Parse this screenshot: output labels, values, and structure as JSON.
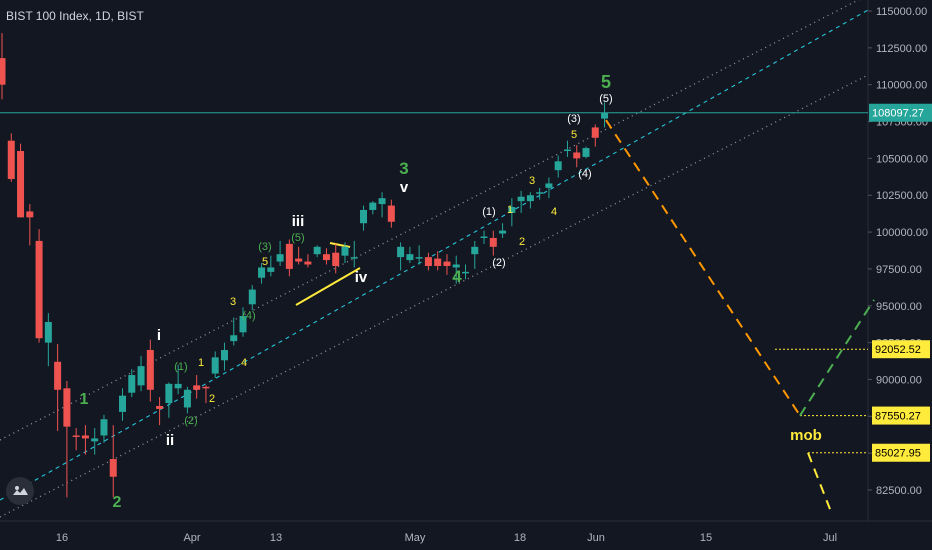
{
  "title": "BIST 100 Index, 1D, BIST",
  "colors": {
    "up": "#26a69a",
    "down": "#ef5350",
    "green": "#4caf50",
    "yellow": "#ffeb3b",
    "white": "#ffffff",
    "orange": "#ff9800",
    "channel_dotted": "#9598a1",
    "channel_center": "#26c6da",
    "tag": "#ffeb3b"
  },
  "price_axis": {
    "ticks": [
      "115000.00",
      "112500.00",
      "110000.00",
      "107500.00",
      "105000.00",
      "102500.00",
      "100000.00",
      "97500.00",
      "95000.00",
      "92500.00",
      "90000.00",
      "87500.00",
      "85000.00",
      "82500.00"
    ]
  },
  "date_axis": {
    "labels": [
      "16",
      "Apr",
      "13",
      "May",
      "18",
      "Jun",
      "15",
      "Jul"
    ]
  },
  "current_price": "108097.27",
  "price_tags": [
    "92052.52",
    "87550.27",
    "85027.95"
  ],
  "wave_labels": [
    "1",
    "2",
    "i",
    "ii",
    "(1)",
    "1",
    "(2)",
    "2",
    "3",
    "4",
    "(3)",
    "5",
    "(4)",
    "(5)",
    "iii",
    "iv",
    "3",
    "v",
    "4",
    "(1)",
    "1",
    "(2)",
    "2",
    "3",
    "4",
    "(3)",
    "5",
    "(4)",
    "(5)",
    "5"
  ],
  "annotation": "mob",
  "chart_data": {
    "type": "candlestick",
    "title": "BIST 100 Index, 1D, BIST",
    "ylim": [
      80000,
      116000
    ],
    "y_ticks": [
      115000,
      112500,
      110000,
      107500,
      105000,
      102500,
      100000,
      97500,
      95000,
      92500,
      90000,
      87500,
      85000,
      82500
    ],
    "x_tick_labels": [
      "16",
      "Apr",
      "13",
      "May",
      "18",
      "Jun",
      "15",
      "Jul"
    ],
    "candles": [
      {
        "o": 111800,
        "h": 113500,
        "l": 109000,
        "c": 110000
      },
      {
        "o": 106200,
        "h": 106700,
        "l": 103400,
        "c": 103600
      },
      {
        "o": 105500,
        "h": 106000,
        "l": 101000,
        "c": 101000
      },
      {
        "o": 101400,
        "h": 101900,
        "l": 99100,
        "c": 101000
      },
      {
        "o": 99400,
        "h": 100200,
        "l": 92500,
        "c": 92800
      },
      {
        "o": 92500,
        "h": 94500,
        "l": 90900,
        "c": 93900
      },
      {
        "o": 91200,
        "h": 92400,
        "l": 86500,
        "c": 89300
      },
      {
        "o": 89400,
        "h": 89900,
        "l": 82000,
        "c": 86800
      },
      {
        "o": 86200,
        "h": 86700,
        "l": 85200,
        "c": 86100
      },
      {
        "o": 86200,
        "h": 86900,
        "l": 84900,
        "c": 86000
      },
      {
        "o": 85800,
        "h": 86700,
        "l": 84900,
        "c": 86000
      },
      {
        "o": 86200,
        "h": 87600,
        "l": 85700,
        "c": 87300
      },
      {
        "o": 84600,
        "h": 86900,
        "l": 82000,
        "c": 83400
      },
      {
        "o": 87800,
        "h": 89400,
        "l": 87200,
        "c": 88900
      },
      {
        "o": 89100,
        "h": 90700,
        "l": 88800,
        "c": 90300
      },
      {
        "o": 89600,
        "h": 91600,
        "l": 89200,
        "c": 90900
      },
      {
        "o": 92000,
        "h": 92700,
        "l": 88500,
        "c": 89300
      },
      {
        "o": 88200,
        "h": 88800,
        "l": 86900,
        "c": 88000
      },
      {
        "o": 88400,
        "h": 89800,
        "l": 87400,
        "c": 89700
      },
      {
        "o": 89400,
        "h": 91000,
        "l": 89000,
        "c": 89700
      },
      {
        "o": 88100,
        "h": 89500,
        "l": 87700,
        "c": 89300
      },
      {
        "o": 89600,
        "h": 90300,
        "l": 88700,
        "c": 89300
      },
      {
        "o": 89500,
        "h": 89600,
        "l": 88400,
        "c": 89400
      },
      {
        "o": 90400,
        "h": 91900,
        "l": 90100,
        "c": 91500
      },
      {
        "o": 91300,
        "h": 92500,
        "l": 90600,
        "c": 92000
      },
      {
        "o": 92600,
        "h": 94200,
        "l": 92300,
        "c": 93000
      },
      {
        "o": 93200,
        "h": 94900,
        "l": 92900,
        "c": 94300
      },
      {
        "o": 95100,
        "h": 96400,
        "l": 94700,
        "c": 96100
      },
      {
        "o": 96900,
        "h": 97900,
        "l": 96500,
        "c": 97600
      },
      {
        "o": 97300,
        "h": 98400,
        "l": 97000,
        "c": 97600
      },
      {
        "o": 98000,
        "h": 99400,
        "l": 97700,
        "c": 98500
      },
      {
        "o": 99200,
        "h": 99500,
        "l": 97000,
        "c": 97500
      },
      {
        "o": 98200,
        "h": 99000,
        "l": 97800,
        "c": 98000
      },
      {
        "o": 98000,
        "h": 98500,
        "l": 97600,
        "c": 97800
      },
      {
        "o": 98500,
        "h": 99100,
        "l": 98300,
        "c": 99000
      },
      {
        "o": 98500,
        "h": 98900,
        "l": 97800,
        "c": 98100
      },
      {
        "o": 98600,
        "h": 99200,
        "l": 97200,
        "c": 97700
      },
      {
        "o": 98400,
        "h": 99300,
        "l": 97900,
        "c": 99000
      },
      {
        "o": 98300,
        "h": 99400,
        "l": 97600,
        "c": 98300
      },
      {
        "o": 100600,
        "h": 101800,
        "l": 100100,
        "c": 101500
      },
      {
        "o": 101500,
        "h": 102100,
        "l": 101200,
        "c": 102000
      },
      {
        "o": 101900,
        "h": 102700,
        "l": 101000,
        "c": 102300
      },
      {
        "o": 101800,
        "h": 102200,
        "l": 100300,
        "c": 100700
      },
      {
        "o": 98300,
        "h": 99300,
        "l": 97400,
        "c": 99000
      },
      {
        "o": 98100,
        "h": 99000,
        "l": 97900,
        "c": 98500
      },
      {
        "o": 98300,
        "h": 99100,
        "l": 97800,
        "c": 98300
      },
      {
        "o": 98300,
        "h": 98600,
        "l": 97400,
        "c": 97700
      },
      {
        "o": 98200,
        "h": 98700,
        "l": 97400,
        "c": 97700
      },
      {
        "o": 98000,
        "h": 98500,
        "l": 97100,
        "c": 97700
      },
      {
        "o": 97600,
        "h": 98400,
        "l": 96500,
        "c": 97800
      },
      {
        "o": 97300,
        "h": 97800,
        "l": 96800,
        "c": 97300
      },
      {
        "o": 98500,
        "h": 99400,
        "l": 97500,
        "c": 99000
      },
      {
        "o": 99600,
        "h": 100100,
        "l": 99200,
        "c": 99700
      },
      {
        "o": 99600,
        "h": 100100,
        "l": 98400,
        "c": 99000
      },
      {
        "o": 99900,
        "h": 100600,
        "l": 99600,
        "c": 100100
      },
      {
        "o": 101300,
        "h": 102300,
        "l": 100400,
        "c": 101700
      },
      {
        "o": 102100,
        "h": 102800,
        "l": 101300,
        "c": 102400
      },
      {
        "o": 102100,
        "h": 102700,
        "l": 101600,
        "c": 102500
      },
      {
        "o": 102600,
        "h": 103000,
        "l": 102200,
        "c": 102700
      },
      {
        "o": 103000,
        "h": 103700,
        "l": 102300,
        "c": 103300
      },
      {
        "o": 104200,
        "h": 105200,
        "l": 103700,
        "c": 104800
      },
      {
        "o": 105500,
        "h": 106200,
        "l": 105100,
        "c": 105600
      },
      {
        "o": 105400,
        "h": 105900,
        "l": 104400,
        "c": 105000
      },
      {
        "o": 105100,
        "h": 105800,
        "l": 105000,
        "c": 105700
      },
      {
        "o": 107100,
        "h": 107300,
        "l": 105800,
        "c": 106400
      },
      {
        "o": 107700,
        "h": 108800,
        "l": 107100,
        "c": 108100
      }
    ],
    "current_price": 108097.27,
    "horizontal_levels": [
      108097.27,
      92052.52,
      87550.27,
      85027.95
    ],
    "channel": "rising parallel channel: two dotted boundaries and a dashed center line",
    "projection": "dashed orange decline from wave 5 to the 87550.27 level, then a dashed green rise; yellow dashed continuation below 85027.95"
  }
}
